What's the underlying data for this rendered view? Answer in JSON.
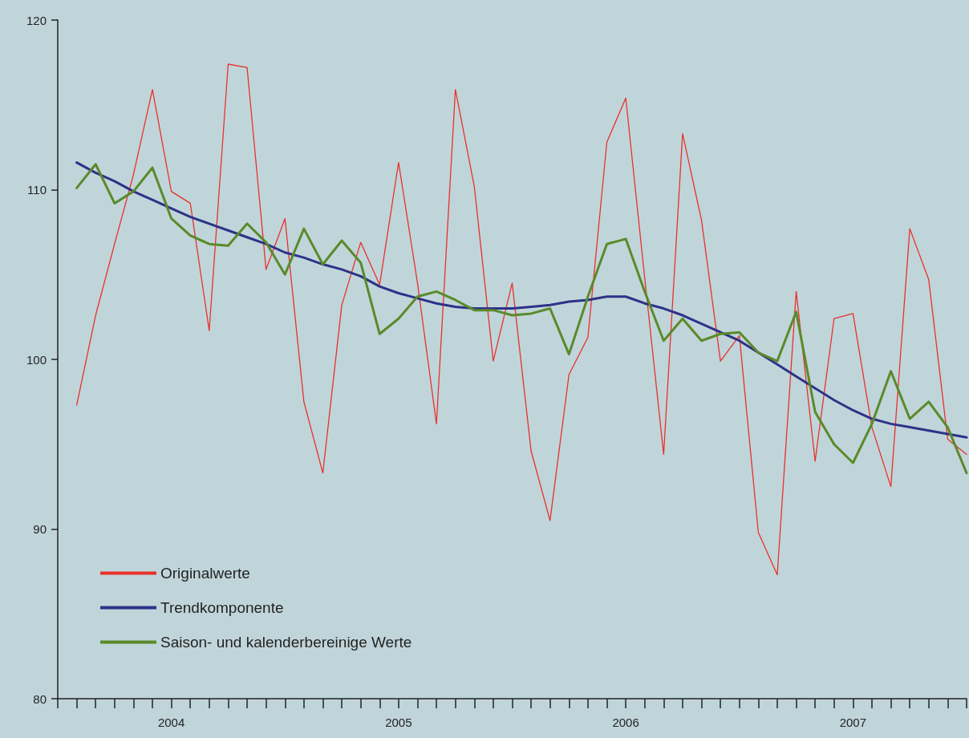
{
  "chart_data": {
    "type": "line",
    "categories": [
      null,
      null,
      null,
      null,
      null,
      null,
      "2004",
      null,
      null,
      null,
      null,
      null,
      null,
      null,
      null,
      null,
      null,
      null,
      "2005",
      null,
      null,
      null,
      null,
      null,
      null,
      null,
      null,
      null,
      null,
      null,
      "2006",
      null,
      null,
      null,
      null,
      null,
      null,
      null,
      null,
      null,
      null,
      null,
      "2007",
      null,
      null,
      null,
      null,
      null,
      null
    ],
    "series": [
      {
        "name": "Originalwerte",
        "color": "#e8312a",
        "values": [
          null,
          97.3,
          102.6,
          106.8,
          110.9,
          115.9,
          109.9,
          109.2,
          101.7,
          117.4,
          117.2,
          105.3,
          108.3,
          97.5,
          93.3,
          103.2,
          106.9,
          104.4,
          111.6,
          104.5,
          96.2,
          115.9,
          110.2,
          99.9,
          104.5,
          94.6,
          90.5,
          99.1,
          101.3,
          112.8,
          115.4,
          104.8,
          94.4,
          113.3,
          108.2,
          99.9,
          101.4,
          89.8,
          87.3,
          104.0,
          94.0,
          102.4,
          102.7,
          96.0,
          92.5,
          107.7,
          104.7,
          95.3,
          94.4
        ]
      },
      {
        "name": "Trendkomponente",
        "color": "#2e3288",
        "values": [
          null,
          111.6,
          111.0,
          110.5,
          109.9,
          109.4,
          108.9,
          108.4,
          108.0,
          107.6,
          107.2,
          106.8,
          106.3,
          106.0,
          105.6,
          105.3,
          104.9,
          104.3,
          103.9,
          103.6,
          103.3,
          103.1,
          103.0,
          103.0,
          103.0,
          103.1,
          103.2,
          103.4,
          103.5,
          103.7,
          103.7,
          103.3,
          103.0,
          102.6,
          102.1,
          101.6,
          101.1,
          100.4,
          99.7,
          99.0,
          98.3,
          97.6,
          97.0,
          96.5,
          96.2,
          96.0,
          95.8,
          95.6,
          95.4
        ]
      },
      {
        "name": "Saison- und kalenderbereinige Werte",
        "color": "#5a8a2a",
        "values": [
          null,
          110.1,
          111.5,
          109.2,
          109.9,
          111.3,
          108.3,
          107.3,
          106.8,
          106.7,
          108.0,
          106.9,
          105.0,
          107.7,
          105.6,
          107.0,
          105.7,
          101.5,
          102.4,
          103.7,
          104.0,
          103.5,
          102.9,
          102.9,
          102.6,
          102.7,
          103.0,
          100.3,
          103.7,
          106.8,
          107.1,
          104.0,
          101.1,
          102.4,
          101.1,
          101.5,
          101.6,
          100.4,
          99.9,
          102.8,
          96.9,
          95.0,
          93.9,
          96.2,
          99.3,
          96.5,
          97.5,
          96.0,
          93.3
        ]
      }
    ],
    "ylim": [
      80,
      120
    ],
    "yticks": [
      80,
      90,
      100,
      110,
      120
    ],
    "grid": false,
    "legend": "bottom left",
    "marker": "none",
    "line_style": "solid"
  }
}
